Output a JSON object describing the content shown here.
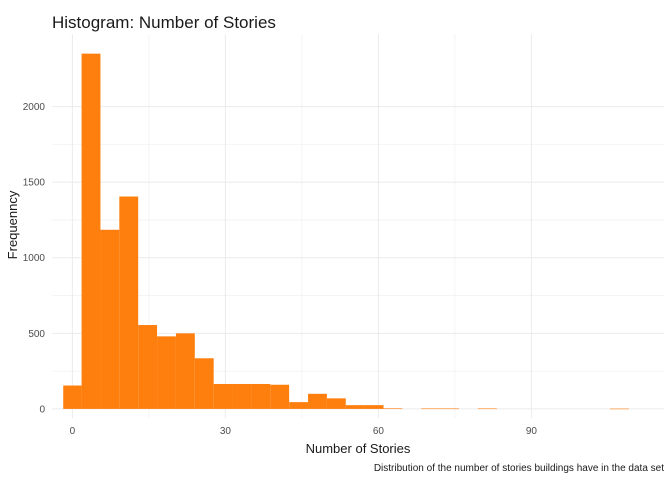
{
  "chart_data": {
    "type": "bar",
    "title": "Histogram: Number of Stories",
    "xlabel": "Number of Stories",
    "ylabel": "Frequenncy",
    "caption": "Distribution of the number of stories buildings have in the data set",
    "bar_color": "#FF7F0E",
    "bin_width": 3.7,
    "x_ticks": [
      0,
      30,
      60,
      90
    ],
    "y_ticks": [
      0,
      500,
      1000,
      1500,
      2000
    ],
    "xlim": [
      -4,
      116
    ],
    "ylim": [
      -60,
      2480
    ],
    "grid": true,
    "bins": [
      {
        "x_start": -1.8,
        "x_end": 1.8,
        "count": 155
      },
      {
        "x_start": 1.8,
        "x_end": 5.5,
        "count": 2350
      },
      {
        "x_start": 5.5,
        "x_end": 9.2,
        "count": 1185
      },
      {
        "x_start": 9.2,
        "x_end": 12.9,
        "count": 1405
      },
      {
        "x_start": 12.9,
        "x_end": 16.6,
        "count": 555
      },
      {
        "x_start": 16.6,
        "x_end": 20.3,
        "count": 480
      },
      {
        "x_start": 20.3,
        "x_end": 24.0,
        "count": 500
      },
      {
        "x_start": 24.0,
        "x_end": 27.7,
        "count": 335
      },
      {
        "x_start": 27.7,
        "x_end": 31.4,
        "count": 165
      },
      {
        "x_start": 31.4,
        "x_end": 35.1,
        "count": 165
      },
      {
        "x_start": 35.1,
        "x_end": 38.8,
        "count": 165
      },
      {
        "x_start": 38.8,
        "x_end": 42.5,
        "count": 160
      },
      {
        "x_start": 42.5,
        "x_end": 46.2,
        "count": 45
      },
      {
        "x_start": 46.2,
        "x_end": 49.9,
        "count": 100
      },
      {
        "x_start": 49.9,
        "x_end": 53.6,
        "count": 70
      },
      {
        "x_start": 53.6,
        "x_end": 57.3,
        "count": 25
      },
      {
        "x_start": 57.3,
        "x_end": 61.0,
        "count": 25
      },
      {
        "x_start": 61.0,
        "x_end": 64.7,
        "count": 4
      },
      {
        "x_start": 64.7,
        "x_end": 68.4,
        "count": 0
      },
      {
        "x_start": 68.4,
        "x_end": 72.1,
        "count": 3
      },
      {
        "x_start": 72.1,
        "x_end": 75.8,
        "count": 3
      },
      {
        "x_start": 75.8,
        "x_end": 79.5,
        "count": 0
      },
      {
        "x_start": 79.5,
        "x_end": 83.2,
        "count": 3
      },
      {
        "x_start": 83.2,
        "x_end": 86.9,
        "count": 0
      },
      {
        "x_start": 86.9,
        "x_end": 90.6,
        "count": 0
      },
      {
        "x_start": 90.6,
        "x_end": 94.3,
        "count": 0
      },
      {
        "x_start": 94.3,
        "x_end": 98.0,
        "count": 0
      },
      {
        "x_start": 98.0,
        "x_end": 101.7,
        "count": 0
      },
      {
        "x_start": 101.7,
        "x_end": 105.4,
        "count": 0
      },
      {
        "x_start": 105.4,
        "x_end": 109.1,
        "count": 2
      }
    ]
  }
}
